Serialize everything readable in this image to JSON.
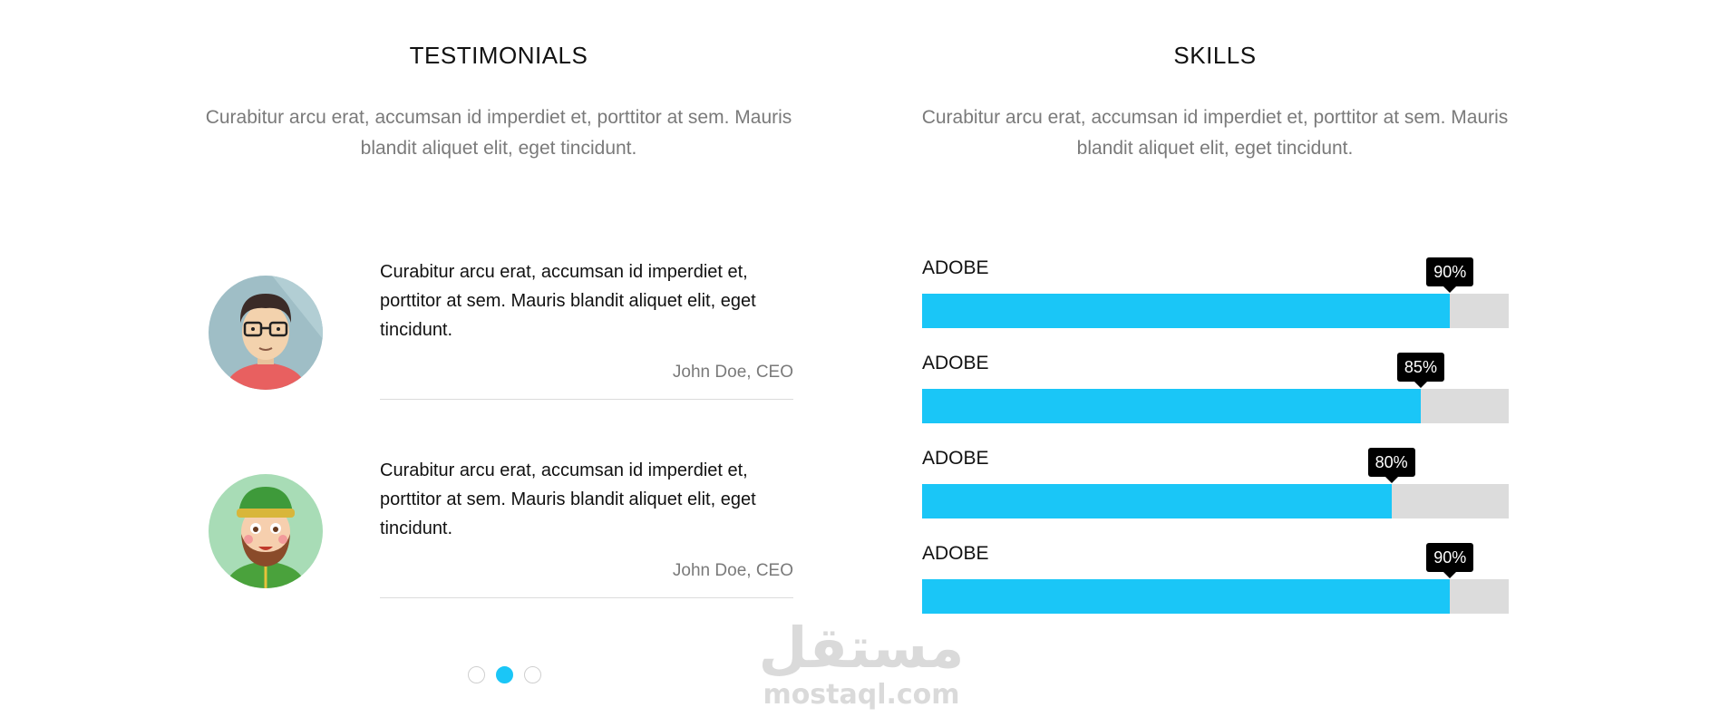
{
  "testimonials_section": {
    "title": "TESTIMONIALS",
    "description": "Curabitur arcu erat, accumsan id imperdiet et, porttitor at sem. Mauris blandit aliquet elit, eget tincidunt.",
    "items": [
      {
        "quote": "Curabitur arcu erat, accumsan id imperdiet et, porttitor at sem. Mauris blandit aliquet elit, eget tincidunt.",
        "author": "John Doe, CEO",
        "avatar": "man-with-glasses-avatar-icon"
      },
      {
        "quote": "Curabitur arcu erat, accumsan id imperdiet et, porttitor at sem. Mauris blandit aliquet elit, eget tincidunt.",
        "author": "John Doe, CEO",
        "avatar": "bearded-man-green-hat-avatar-icon"
      }
    ],
    "carousel": {
      "page_count": 3,
      "active_page": 2
    }
  },
  "skills_section": {
    "title": "SKILLS",
    "description": "Curabitur arcu erat, accumsan id imperdiet et, porttitor at sem. Mauris blandit aliquet elit, eget tincidunt.",
    "skills": [
      {
        "label": "ADOBE",
        "percent": 90,
        "percent_label": "90%"
      },
      {
        "label": "ADOBE",
        "percent": 85,
        "percent_label": "85%"
      },
      {
        "label": "ADOBE",
        "percent": 80,
        "percent_label": "80%"
      },
      {
        "label": "ADOBE",
        "percent": 90,
        "percent_label": "90%"
      }
    ]
  },
  "watermark": {
    "arabic": "مستقل",
    "latin": "mostaql.com"
  },
  "colors": {
    "accent": "#1ac6f7",
    "track": "#dcdcdc",
    "muted_text": "#7a7a7a",
    "tooltip_bg": "#000000"
  }
}
